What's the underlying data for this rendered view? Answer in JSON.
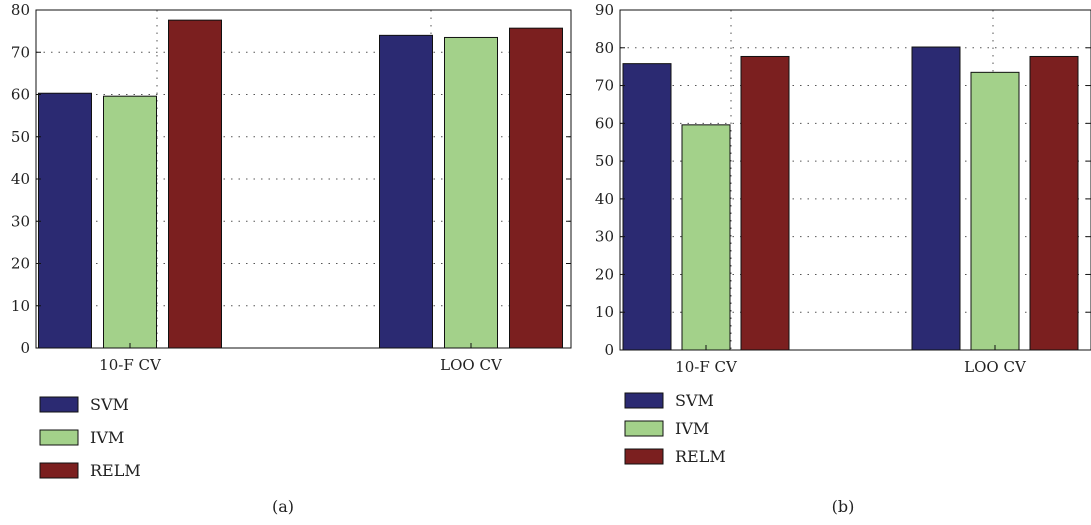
{
  "colors": {
    "SVM": "#2b2a72",
    "IVM": "#a3d18a",
    "RELM": "#7b1f1f"
  },
  "chart_data": [
    {
      "type": "bar",
      "caption": "(a)",
      "categories": [
        "10-F CV",
        "LOO CV"
      ],
      "ylim": [
        0,
        80
      ],
      "yticks": [
        0,
        10,
        20,
        30,
        40,
        50,
        60,
        70,
        80
      ],
      "grid": true,
      "legend_position": "bottom-left",
      "series": [
        {
          "name": "SVM",
          "values": [
            60.3,
            74.0
          ]
        },
        {
          "name": "IVM",
          "values": [
            59.6,
            73.5
          ]
        },
        {
          "name": "RELM",
          "values": [
            77.6,
            75.7
          ]
        }
      ]
    },
    {
      "type": "bar",
      "caption": "(b)",
      "categories": [
        "10-F CV",
        "LOO CV"
      ],
      "ylim": [
        0,
        90
      ],
      "yticks": [
        0,
        10,
        20,
        30,
        40,
        50,
        60,
        70,
        80,
        90
      ],
      "grid": true,
      "legend_position": "bottom-left",
      "series": [
        {
          "name": "SVM",
          "values": [
            75.8,
            80.2
          ]
        },
        {
          "name": "IVM",
          "values": [
            59.6,
            73.5
          ]
        },
        {
          "name": "RELM",
          "values": [
            77.7,
            77.7
          ]
        }
      ]
    }
  ]
}
